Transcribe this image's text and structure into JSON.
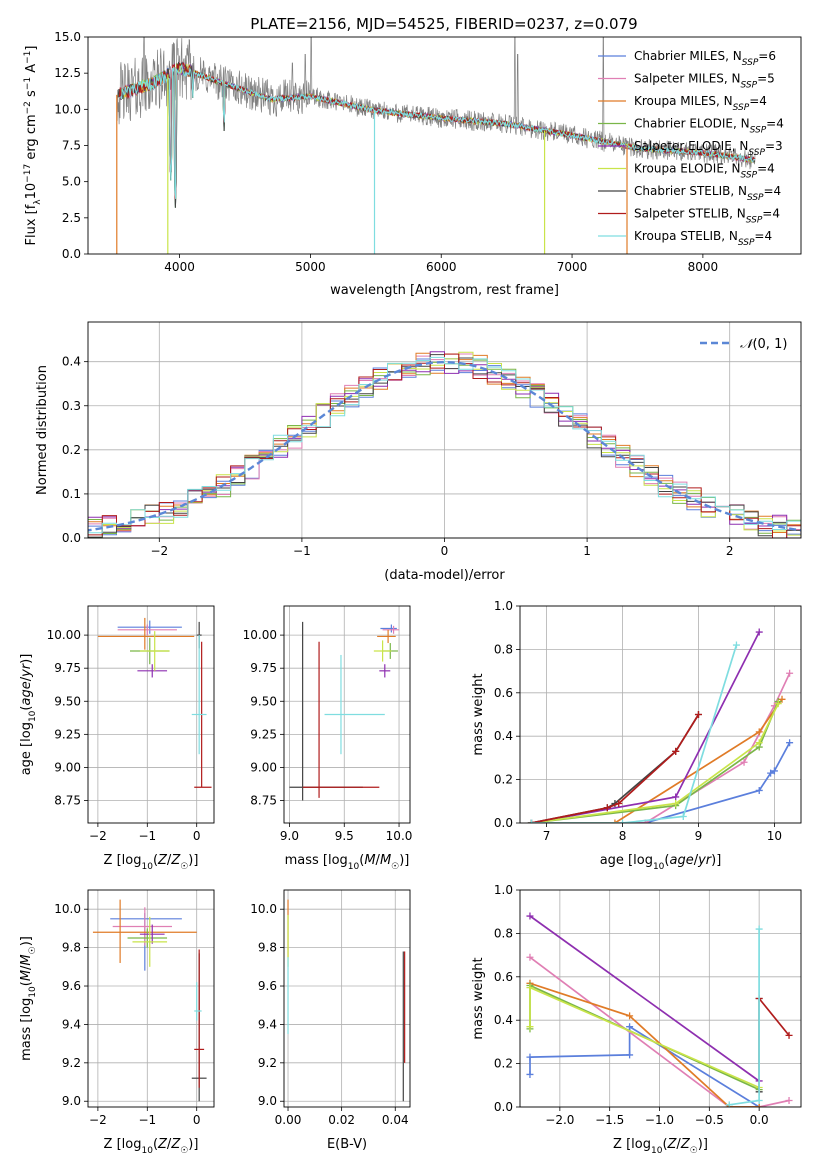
{
  "figure_title": "PLATE=2156, MJD=54525, FIBERID=0237, z=0.079",
  "legend_series": [
    {
      "label": "Chabrier MILES, N",
      "sub": "SSP",
      "eq": "=6",
      "color": "#5b7fdc"
    },
    {
      "label": "Salpeter MILES, N",
      "sub": "SSP",
      "eq": "=5",
      "color": "#e07fb4"
    },
    {
      "label": "Kroupa MILES, N",
      "sub": "SSP",
      "eq": "=4",
      "color": "#e07b27"
    },
    {
      "label": "Chabrier ELODIE, N",
      "sub": "SSP",
      "eq": "=4",
      "color": "#7ab648"
    },
    {
      "label": "Salpeter ELODIE, N",
      "sub": "SSP",
      "eq": "=3",
      "color": "#8e2fb0"
    },
    {
      "label": "Kroupa ELODIE, N",
      "sub": "SSP",
      "eq": "=4",
      "color": "#c9e44a"
    },
    {
      "label": "Chabrier STELIB, N",
      "sub": "SSP",
      "eq": "=4",
      "color": "#444444"
    },
    {
      "label": "Salpeter STELIB, N",
      "sub": "SSP",
      "eq": "=4",
      "color": "#b01c1c"
    },
    {
      "label": "Kroupa STELIB, N",
      "sub": "SSP",
      "eq": "=4",
      "color": "#7fdde0"
    }
  ],
  "chart_data": [
    {
      "id": "spectrum",
      "type": "line",
      "title": "PLATE=2156, MJD=54525, FIBERID=0237, z=0.079",
      "xlabel": "wavelength [Angstrom, rest frame]",
      "ylabel": "Flux [f_λ 10^-17 erg cm^-2 s^-1 A^-1]",
      "xlim": [
        3300,
        8750
      ],
      "ylim": [
        0,
        15
      ],
      "xticks": [
        4000,
        5000,
        6000,
        7000,
        8000
      ],
      "yticks": [
        "0.0",
        "2.5",
        "5.0",
        "7.5",
        "10.0",
        "12.5",
        "15.0"
      ],
      "grid": false,
      "legend": "top-right",
      "data_color": "#808080",
      "continuum": [
        [
          3520,
          11.0
        ],
        [
          3800,
          11.8
        ],
        [
          4000,
          12.9
        ],
        [
          4300,
          11.9
        ],
        [
          4700,
          10.7
        ],
        [
          5000,
          10.9
        ],
        [
          5500,
          9.9
        ],
        [
          6000,
          9.4
        ],
        [
          6500,
          9.0
        ],
        [
          7000,
          8.2
        ],
        [
          7500,
          7.3
        ],
        [
          8000,
          7.0
        ],
        [
          8400,
          6.5
        ]
      ],
      "model_absorption": [
        [
          3933,
          4.8
        ],
        [
          3968,
          3.2
        ],
        [
          4101,
          10.5
        ],
        [
          4340,
          8.5
        ],
        [
          5175,
          10.2
        ],
        [
          5890,
          9.4
        ]
      ],
      "model_dropouts": [
        {
          "x": 3520,
          "color": "#e07b27"
        },
        {
          "x": 3910,
          "color": "#c9e44a"
        },
        {
          "x": 5490,
          "color": "#7fdde0"
        },
        {
          "x": 6790,
          "color": "#c9e44a"
        },
        {
          "x": 7420,
          "color": "#e07b27"
        }
      ],
      "emission_spikes": [
        [
          3727,
          15
        ],
        [
          4861,
          13.2
        ],
        [
          4959,
          13.8
        ],
        [
          5007,
          15
        ],
        [
          6563,
          15
        ],
        [
          6583,
          13.8
        ],
        [
          7240,
          15
        ]
      ]
    },
    {
      "id": "residuals",
      "type": "line",
      "xlabel": "(data-model)/error",
      "ylabel": "Normed distribution",
      "xlim": [
        -2.5,
        2.5
      ],
      "ylim": [
        0,
        0.49
      ],
      "xticks": [
        "−2",
        "−1",
        "0",
        "1",
        "2"
      ],
      "yticks": [
        "0.0",
        "0.1",
        "0.2",
        "0.3",
        "0.4"
      ],
      "grid": true,
      "legend": "top-right",
      "legend_label": "N(0, 1)",
      "bin_width": 0.1,
      "gaussian": {
        "mu": 0,
        "sigma": 1
      }
    },
    {
      "id": "age_vs_z",
      "type": "scatter",
      "xlabel": "Z [log10(Z/Z☉)]",
      "ylabel": "age  [log10(age/yr)]",
      "xlim": [
        -2.2,
        0.35
      ],
      "ylim": [
        8.58,
        10.22
      ],
      "xticks": [
        "−2",
        "−1",
        "0"
      ],
      "yticks": [
        "8.75",
        "9.00",
        "9.25",
        "9.50",
        "9.75",
        "10.00"
      ],
      "grid": true,
      "points": [
        {
          "color": "#5b7fdc",
          "x": -0.95,
          "xerr": [
            0.65,
            0.65
          ],
          "y": 10.06,
          "yerr": [
            0.05,
            0.05
          ]
        },
        {
          "color": "#e07fb4",
          "x": -1.0,
          "xerr": [
            0.6,
            0.6
          ],
          "y": 10.04,
          "yerr": [
            0.04,
            0.04
          ]
        },
        {
          "color": "#e07b27",
          "x": -1.05,
          "xerr": [
            0.95,
            1.0
          ],
          "y": 9.99,
          "yerr": [
            0.1,
            0.14
          ]
        },
        {
          "color": "#7ab648",
          "x": -0.95,
          "xerr": [
            0.4,
            0.4
          ],
          "y": 9.88,
          "yerr": [
            0.1,
            0.1
          ]
        },
        {
          "color": "#8e2fb0",
          "x": -0.9,
          "xerr": [
            0.3,
            0.3
          ],
          "y": 9.73,
          "yerr": [
            0.05,
            0.05
          ]
        },
        {
          "color": "#c9e44a",
          "x": -0.85,
          "xerr": [
            0.3,
            0.3
          ],
          "y": 9.88,
          "yerr": [
            0.15,
            0.15
          ]
        },
        {
          "color": "#444444",
          "x": 0.05,
          "xerr": [
            0.05,
            0.05
          ],
          "y": 10.0,
          "yerr": [
            0.1,
            0.1
          ]
        },
        {
          "color": "#b01c1c",
          "x": 0.1,
          "xerr": [
            0.15,
            0.2
          ],
          "y": 8.85,
          "yerr": [
            0.0,
            1.1
          ]
        },
        {
          "color": "#7fdde0",
          "x": 0.05,
          "xerr": [
            0.15,
            0.15
          ],
          "y": 9.4,
          "yerr": [
            0.3,
            0.6
          ]
        }
      ]
    },
    {
      "id": "age_vs_mass",
      "type": "scatter",
      "xlabel": "mass [log10(M/M☉)]",
      "ylabel": "",
      "xlim": [
        8.95,
        10.1
      ],
      "ylim": [
        8.58,
        10.22
      ],
      "xticks": [
        "9.0",
        "9.5",
        "10.0"
      ],
      "yticks": [
        "8.75",
        "9.00",
        "9.25",
        "9.50",
        "9.75",
        "10.00"
      ],
      "grid": true,
      "points": [
        {
          "color": "#5b7fdc",
          "x": 9.93,
          "xerr": [
            0.1,
            0.05
          ],
          "y": 10.05,
          "yerr": [
            0.03,
            0.03
          ]
        },
        {
          "color": "#e07fb4",
          "x": 9.95,
          "xerr": [
            0.1,
            0.05
          ],
          "y": 10.04,
          "yerr": [
            0.03,
            0.03
          ]
        },
        {
          "color": "#e07b27",
          "x": 9.9,
          "xerr": [
            0.1,
            0.07
          ],
          "y": 9.99,
          "yerr": [
            0.05,
            0.05
          ]
        },
        {
          "color": "#7ab648",
          "x": 9.92,
          "xerr": [
            0.07,
            0.07
          ],
          "y": 9.88,
          "yerr": [
            0.06,
            0.06
          ]
        },
        {
          "color": "#8e2fb0",
          "x": 9.87,
          "xerr": [
            0.05,
            0.05
          ],
          "y": 9.73,
          "yerr": [
            0.05,
            0.05
          ]
        },
        {
          "color": "#c9e44a",
          "x": 9.85,
          "xerr": [
            0.08,
            0.08
          ],
          "y": 9.88,
          "yerr": [
            0.08,
            0.08
          ]
        },
        {
          "color": "#444444",
          "x": 9.12,
          "xerr": [
            0.12,
            0.55
          ],
          "y": 8.85,
          "yerr": [
            0.1,
            1.25
          ]
        },
        {
          "color": "#b01c1c",
          "x": 9.27,
          "xerr": [
            0.15,
            0.55
          ],
          "y": 8.85,
          "yerr": [
            0.08,
            1.1
          ]
        },
        {
          "color": "#7fdde0",
          "x": 9.47,
          "xerr": [
            0.15,
            0.4
          ],
          "y": 9.4,
          "yerr": [
            0.3,
            0.45
          ]
        }
      ]
    },
    {
      "id": "mass_weight_vs_age",
      "type": "line",
      "xlabel": "age  [log10(age/yr)]",
      "ylabel": "mass weight",
      "xlim": [
        6.65,
        10.35
      ],
      "ylim": [
        0,
        1
      ],
      "xticks": [
        "7",
        "8",
        "9",
        "10"
      ],
      "yticks": [
        "0.0",
        "0.2",
        "0.4",
        "0.6",
        "0.8",
        "1.0"
      ],
      "grid": true,
      "series": [
        {
          "color": "#5b7fdc",
          "x": [
            6.8,
            8.3,
            9.8,
            9.95,
            10.0,
            10.2
          ],
          "y": [
            0.0,
            0.0,
            0.15,
            0.23,
            0.24,
            0.37
          ]
        },
        {
          "color": "#e07fb4",
          "x": [
            6.8,
            8.3,
            9.6,
            10.0,
            10.2
          ],
          "y": [
            0.0,
            0.0,
            0.28,
            0.54,
            0.69
          ]
        },
        {
          "color": "#e07b27",
          "x": [
            6.8,
            7.9,
            9.8,
            10.1
          ],
          "y": [
            0.0,
            0.0,
            0.42,
            0.57
          ]
        },
        {
          "color": "#7ab648",
          "x": [
            6.8,
            8.7,
            9.8,
            10.05
          ],
          "y": [
            0.0,
            0.08,
            0.35,
            0.56
          ]
        },
        {
          "color": "#8e2fb0",
          "x": [
            6.8,
            8.7,
            9.8
          ],
          "y": [
            0.0,
            0.12,
            0.88
          ]
        },
        {
          "color": "#c9e44a",
          "x": [
            6.8,
            8.7,
            9.8,
            10.05
          ],
          "y": [
            0.0,
            0.09,
            0.37,
            0.55
          ]
        },
        {
          "color": "#444444",
          "x": [
            6.8,
            7.8,
            7.9,
            8.7,
            9.0
          ],
          "y": [
            0.0,
            0.07,
            0.09,
            0.33,
            0.5
          ]
        },
        {
          "color": "#b01c1c",
          "x": [
            6.8,
            7.8,
            7.95,
            8.7,
            9.0
          ],
          "y": [
            0.0,
            0.07,
            0.09,
            0.33,
            0.5
          ]
        },
        {
          "color": "#7fdde0",
          "x": [
            6.8,
            8.0,
            8.8,
            9.5
          ],
          "y": [
            0.0,
            0.0,
            0.03,
            0.82
          ]
        }
      ]
    },
    {
      "id": "mass_vs_z",
      "type": "scatter",
      "xlabel": "Z [log10(Z/Z☉)]",
      "ylabel": "mass [log10(M/M☉)]",
      "xlim": [
        -2.2,
        0.35
      ],
      "ylim": [
        8.97,
        10.1
      ],
      "xticks": [
        "−2",
        "−1",
        "0"
      ],
      "yticks": [
        "9.0",
        "9.2",
        "9.4",
        "9.6",
        "9.8",
        "10.0"
      ],
      "grid": true,
      "points": [
        {
          "color": "#5b7fdc",
          "x": -1.05,
          "xerr": [
            0.7,
            0.75
          ],
          "y": 9.95,
          "yerr": [
            0.27,
            0.03
          ]
        },
        {
          "color": "#e07fb4",
          "x": -1.05,
          "xerr": [
            0.65,
            0.55
          ],
          "y": 9.91,
          "yerr": [
            0.1,
            0.1
          ]
        },
        {
          "color": "#e07b27",
          "x": -1.55,
          "xerr": [
            0.55,
            1.55
          ],
          "y": 9.88,
          "yerr": [
            0.16,
            0.17
          ]
        },
        {
          "color": "#7ab648",
          "x": -1.0,
          "xerr": [
            0.4,
            0.4
          ],
          "y": 9.85,
          "yerr": [
            0.05,
            0.05
          ]
        },
        {
          "color": "#8e2fb0",
          "x": -0.9,
          "xerr": [
            0.25,
            0.25
          ],
          "y": 9.87,
          "yerr": [
            0.05,
            0.05
          ]
        },
        {
          "color": "#c9e44a",
          "x": -0.95,
          "xerr": [
            0.35,
            0.35
          ],
          "y": 9.83,
          "yerr": [
            0.13,
            0.13
          ]
        },
        {
          "color": "#444444",
          "x": 0.05,
          "xerr": [
            0.15,
            0.15
          ],
          "y": 9.12,
          "yerr": [
            0.12,
            0.65
          ]
        },
        {
          "color": "#b01c1c",
          "x": 0.05,
          "xerr": [
            0.1,
            0.1
          ],
          "y": 9.27,
          "yerr": [
            0.2,
            0.52
          ]
        },
        {
          "color": "#7fdde0",
          "x": 0.0,
          "xerr": [
            0.05,
            0.1
          ],
          "y": 9.47,
          "yerr": [
            0.05,
            0.15
          ]
        }
      ]
    },
    {
      "id": "mass_vs_ebv",
      "type": "scatter",
      "xlabel": "E(B-V)",
      "ylabel": "",
      "xlim": [
        -0.0015,
        0.0455
      ],
      "ylim": [
        8.97,
        10.1
      ],
      "xticks": [
        "0.00",
        "0.02",
        "0.04"
      ],
      "yticks": [
        "9.0",
        "9.2",
        "9.4",
        "9.6",
        "9.8",
        "10.0"
      ],
      "grid": true,
      "points": [
        {
          "color": "#e07b27",
          "x": 0.0,
          "xerr": [
            0,
            0
          ],
          "y": 9.9,
          "yerr": [
            0.15,
            0.15
          ]
        },
        {
          "color": "#c9e44a",
          "x": 0.0,
          "xerr": [
            0,
            0
          ],
          "y": 9.85,
          "yerr": [
            0.15,
            0.12
          ]
        },
        {
          "color": "#7fdde0",
          "x": 0.0,
          "xerr": [
            0,
            0
          ],
          "y": 9.55,
          "yerr": [
            0.2,
            0.2
          ]
        },
        {
          "color": "#444444",
          "x": 0.043,
          "xerr": [
            0,
            0
          ],
          "y": 9.4,
          "yerr": [
            0.4,
            0.38
          ]
        },
        {
          "color": "#b01c1c",
          "x": 0.0435,
          "xerr": [
            0,
            0
          ],
          "y": 9.5,
          "yerr": [
            0.3,
            0.28
          ]
        }
      ]
    },
    {
      "id": "mass_weight_vs_z",
      "type": "line",
      "xlabel": "Z [log10(Z/Z☉)]",
      "ylabel": "mass weight",
      "xlim": [
        -2.4,
        0.42
      ],
      "ylim": [
        0,
        1
      ],
      "xticks": [
        "−2.0",
        "−1.5",
        "−1.0",
        "−0.5",
        "0.0"
      ],
      "yticks": [
        "0.0",
        "0.2",
        "0.4",
        "0.6",
        "0.8",
        "1.0"
      ],
      "grid": true,
      "series": [
        {
          "color": "#5b7fdc",
          "x": [
            -2.3,
            -2.3,
            -1.3,
            -1.3,
            0.0
          ],
          "y": [
            0.15,
            0.23,
            0.24,
            0.37,
            0.0
          ]
        },
        {
          "color": "#e07fb4",
          "x": [
            -2.3,
            -0.3,
            0.0,
            0.3
          ],
          "y": [
            0.69,
            0.0,
            0.0,
            0.03
          ]
        },
        {
          "color": "#e07b27",
          "x": [
            -2.3,
            -1.3,
            -0.3,
            0.0
          ],
          "y": [
            0.57,
            0.42,
            0.0,
            0.0
          ]
        },
        {
          "color": "#7ab648",
          "x": [
            -2.3,
            -2.3,
            0.0
          ],
          "y": [
            0.36,
            0.56,
            0.08
          ]
        },
        {
          "color": "#8e2fb0",
          "x": [
            -2.3,
            0.0
          ],
          "y": [
            0.88,
            0.12
          ]
        },
        {
          "color": "#c9e44a",
          "x": [
            -2.3,
            -2.3,
            0.0
          ],
          "y": [
            0.37,
            0.55,
            0.09
          ]
        },
        {
          "color": "#444444",
          "x": [
            0.0,
            0.0
          ],
          "y": [
            0.5,
            0.07
          ]
        },
        {
          "color": "#b01c1c",
          "x": [
            0.0,
            0.3
          ],
          "y": [
            0.5,
            0.33
          ]
        },
        {
          "color": "#7fdde0",
          "x": [
            -0.3,
            0.0,
            0.0
          ],
          "y": [
            0.01,
            0.03,
            0.82
          ]
        }
      ]
    }
  ]
}
